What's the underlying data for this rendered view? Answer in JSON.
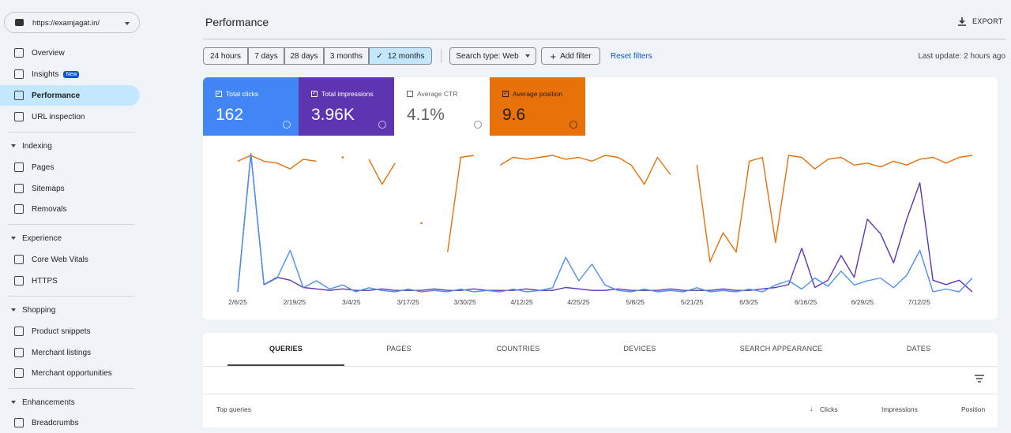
{
  "property": "https://examjagat.in/",
  "sidebar": [
    {
      "label": "Overview"
    },
    {
      "label": "Insights",
      "badge": "New"
    },
    {
      "label": "Performance"
    },
    {
      "label": "URL inspection"
    },
    {
      "section": "Indexing"
    },
    {
      "label": "Pages"
    },
    {
      "label": "Sitemaps"
    },
    {
      "label": "Removals"
    },
    {
      "section": "Experience"
    },
    {
      "label": "Core Web Vitals"
    },
    {
      "label": "HTTPS"
    },
    {
      "section": "Shopping"
    },
    {
      "label": "Product snippets"
    },
    {
      "label": "Merchant listings"
    },
    {
      "label": "Merchant opportunities"
    },
    {
      "section": "Enhancements"
    },
    {
      "label": "Breadcrumbs"
    }
  ],
  "header": {
    "title": "Performance",
    "export": "EXPORT"
  },
  "filters": {
    "ranges": [
      "24 hours",
      "7 days",
      "28 days",
      "3 months",
      "12 months"
    ],
    "search_type": "Search type: Web",
    "add_filter": "Add filter",
    "reset": "Reset filters",
    "last_update": "Last update: 2 hours ago"
  },
  "metrics": [
    {
      "label": "Total clicks",
      "value": "162"
    },
    {
      "label": "Total impressions",
      "value": "3.96K"
    },
    {
      "label": "Average CTR",
      "value": "4.1%"
    },
    {
      "label": "Average position",
      "value": "9.6"
    }
  ],
  "chart": {
    "type": "line",
    "xticks": [
      "2/6/25",
      "2/19/25",
      "3/4/25",
      "3/17/25",
      "3/30/25",
      "4/12/25",
      "4/25/25",
      "5/8/25",
      "5/21/25",
      "6/3/25",
      "6/16/25",
      "6/29/25",
      "7/12/25"
    ],
    "series": [
      {
        "name": "Total clicks",
        "color": "#4d8ff0",
        "values": [
          0,
          100,
          5,
          10,
          30,
          3,
          8,
          2,
          5,
          0,
          3,
          1,
          0,
          2,
          0,
          1,
          0,
          2,
          0,
          1,
          0,
          2,
          0,
          1,
          3,
          25,
          8,
          20,
          5,
          1,
          0,
          2,
          0,
          1,
          0,
          3,
          0,
          1,
          0,
          2,
          0,
          5,
          8,
          2,
          10,
          4,
          15,
          5,
          8,
          10,
          3,
          12,
          30,
          0,
          2,
          0,
          10
        ]
      },
      {
        "name": "Total impressions",
        "color": "#5e35b1",
        "values": [
          0,
          95,
          5,
          10,
          8,
          3,
          2,
          1,
          2,
          1,
          1,
          2,
          1,
          1,
          1,
          2,
          1,
          1,
          2,
          1,
          1,
          1,
          2,
          1,
          1,
          3,
          2,
          1,
          1,
          2,
          1,
          1,
          1,
          2,
          1,
          1,
          1,
          2,
          1,
          1,
          2,
          3,
          5,
          30,
          3,
          8,
          25,
          10,
          50,
          40,
          20,
          50,
          75,
          8,
          5,
          8,
          0
        ]
      },
      {
        "name": "Average position",
        "color": "#e8710a",
        "values": [
          8,
          5,
          8,
          9,
          12,
          7,
          8,
          null,
          6,
          null,
          7,
          20,
          9,
          null,
          40,
          null,
          55,
          6,
          5,
          null,
          10,
          6,
          7,
          6,
          5,
          7,
          6,
          8,
          5,
          6,
          10,
          20,
          6,
          15,
          null,
          10,
          60,
          45,
          55,
          8,
          6,
          50,
          5,
          6,
          12,
          7,
          6,
          10,
          9,
          11,
          8,
          10,
          7,
          6,
          9,
          6,
          5
        ]
      }
    ]
  },
  "tabs": [
    "QUERIES",
    "PAGES",
    "COUNTRIES",
    "DEVICES",
    "SEARCH APPEARANCE",
    "DATES"
  ],
  "table": {
    "title": "Top queries",
    "columns": [
      "Clicks",
      "Impressions",
      "Position"
    ]
  }
}
